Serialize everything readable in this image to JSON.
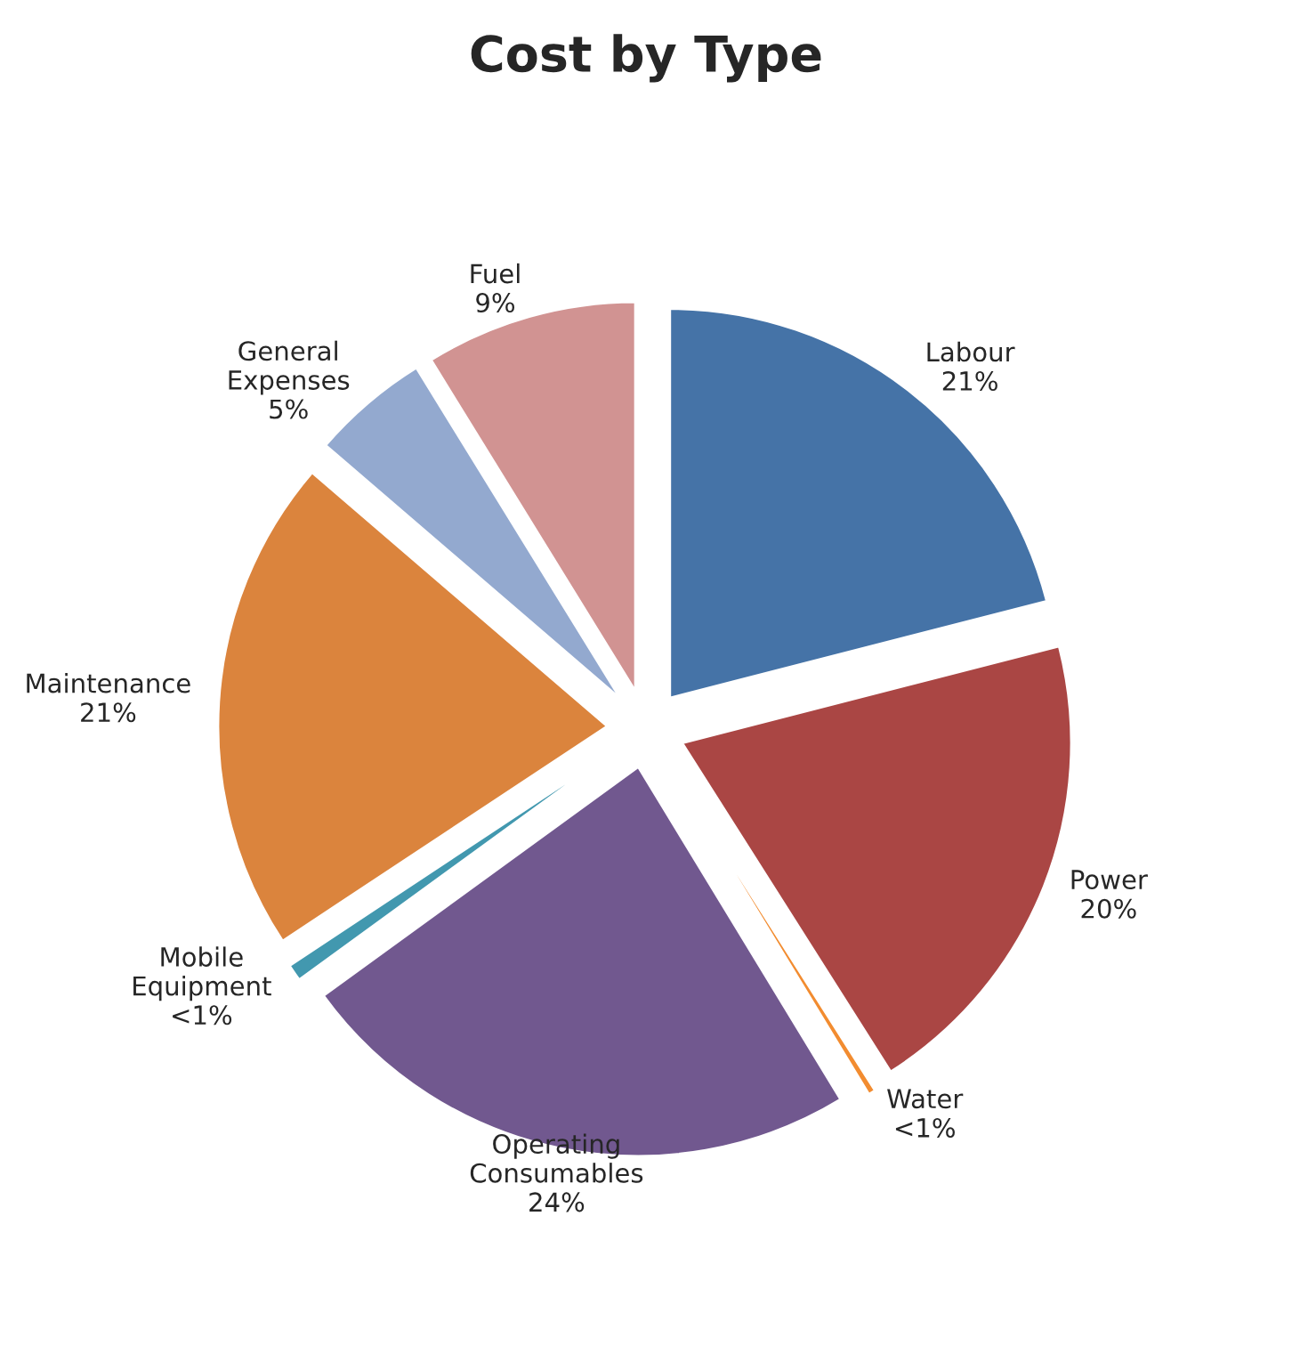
{
  "chart_data": {
    "type": "pie",
    "title": "Cost by Type",
    "categories": [
      "Labour",
      "Power",
      "Water",
      "Operating Consumables",
      "Mobile Equipment",
      "Maintenance",
      "General Expenses",
      "Fuel"
    ],
    "values": [
      21,
      20,
      0.3,
      23.7,
      0.7,
      20.6,
      4.9,
      8.8
    ],
    "value_labels": [
      "21%",
      "20%",
      "<1%",
      "24%",
      "<1%",
      "21%",
      "5%",
      "9%"
    ],
    "colors": [
      "#4573a7",
      "#aa4644",
      "#f28c30",
      "#71588f",
      "#4298af",
      "#db843d",
      "#93a9cf",
      "#d19392"
    ]
  }
}
